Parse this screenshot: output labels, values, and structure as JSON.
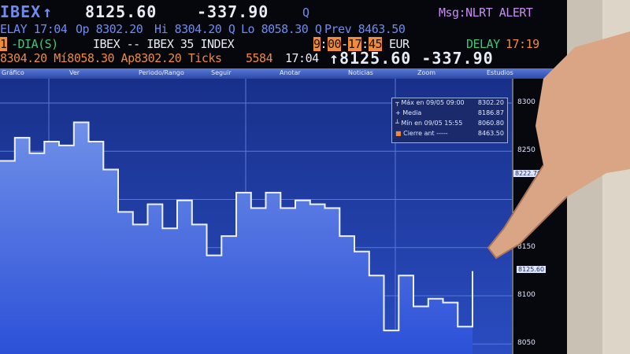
{
  "header": {
    "row1": {
      "ticker": "IBEX",
      "arrow": "↑",
      "last": "8125.60",
      "change": "-337.90",
      "q": "Q",
      "msg": "Msg:NLRT ALERT"
    },
    "row2": {
      "delay": "ELAY 17:04",
      "open": "Op 8302.20",
      "high": "Hi 8304.20 Q",
      "low": "Lo 8058.30 Q",
      "prev": "Prev 8463.50"
    },
    "row3": {
      "days_num": "1",
      "days": "-DIA(S)",
      "index": "IBEX -- IBEX 35 INDEX",
      "t1": "9",
      "t2": "00",
      "t3": "17",
      "t4": "45",
      "currency": "EUR",
      "delay_label": "DELAY",
      "delay_time": "17:19"
    },
    "row4": {
      "stats": "8304.20 Mí8058.30 Ap8302.20 Ticks",
      "ticks": "5584",
      "time": "17:04",
      "last": "↑8125.60 -337.90"
    }
  },
  "toolbar": [
    "Gráfico",
    "Ver",
    "Periodo/Rango",
    "Seguir",
    "Anotar",
    "Noticias",
    "Zoom",
    "Estudios"
  ],
  "legend": [
    {
      "label": "Máx en 09/05 09:00",
      "value": "8302.20"
    },
    {
      "label": "Media",
      "value": "8186.87"
    },
    {
      "label": "Mín en 09/05 15:55",
      "value": "8060.80"
    },
    {
      "label": "Cierre ant -----",
      "value": "8463.50"
    }
  ],
  "colors": {
    "background": "#1c3a9c",
    "line": "#e8ecff",
    "accent": "#f08a3c"
  },
  "chart_data": {
    "type": "area",
    "yticks": [
      "8300",
      "8250",
      "8150",
      "8100",
      "8050"
    ],
    "ylim": [
      8030,
      8340
    ],
    "axis_side": "right",
    "markers": {
      "last": "8125.60",
      "other": "8222.70"
    },
    "values": [
      8240,
      8264,
      8248,
      8260,
      8256,
      8280,
      8260,
      8231,
      8187,
      8174,
      8195,
      8170,
      8199,
      8174,
      8142,
      8162,
      8207,
      8191,
      8207,
      8191,
      8199,
      8195,
      8191,
      8162,
      8146,
      8121,
      8064,
      8121,
      8089,
      8097,
      8093,
      8068,
      8125.6
    ]
  }
}
